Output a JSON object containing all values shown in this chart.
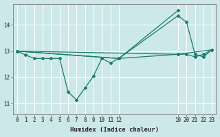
{
  "xlabel": "Humidex (Indice chaleur)",
  "background_color": "#cce8e8",
  "line_color": "#1a7a6e",
  "grid_color": "#ffffff",
  "ylim": [
    10.6,
    14.8
  ],
  "xlim": [
    -0.5,
    23.5
  ],
  "yticks": [
    11,
    12,
    13,
    14
  ],
  "xtick_positions": [
    0,
    1,
    2,
    3,
    4,
    5,
    6,
    7,
    8,
    9,
    10,
    11,
    12,
    19,
    20,
    21,
    22,
    23
  ],
  "xtick_labels": [
    "0",
    "1",
    "2",
    "3",
    "4",
    "5",
    "6",
    "7",
    "8",
    "9",
    "10",
    "11",
    "12",
    "19",
    "20",
    "21",
    "22",
    "23"
  ],
  "series": [
    {
      "x": [
        0,
        1,
        2,
        3,
        4,
        5,
        6,
        7,
        8,
        9,
        10,
        11,
        12,
        19,
        20,
        21,
        22,
        23
      ],
      "y": [
        13.0,
        12.85,
        12.72,
        12.72,
        12.72,
        12.72,
        11.45,
        11.15,
        11.6,
        12.05,
        12.72,
        12.55,
        12.72,
        12.88,
        12.88,
        12.78,
        12.88,
        13.05
      ]
    },
    {
      "x": [
        0,
        12,
        19
      ],
      "y": [
        13.0,
        12.72,
        14.55
      ]
    },
    {
      "x": [
        0,
        12,
        19,
        20,
        21,
        22,
        23
      ],
      "y": [
        13.0,
        12.72,
        14.35,
        14.1,
        12.88,
        12.78,
        13.05
      ]
    },
    {
      "x": [
        0,
        19,
        23
      ],
      "y": [
        13.0,
        12.88,
        13.05
      ]
    }
  ]
}
